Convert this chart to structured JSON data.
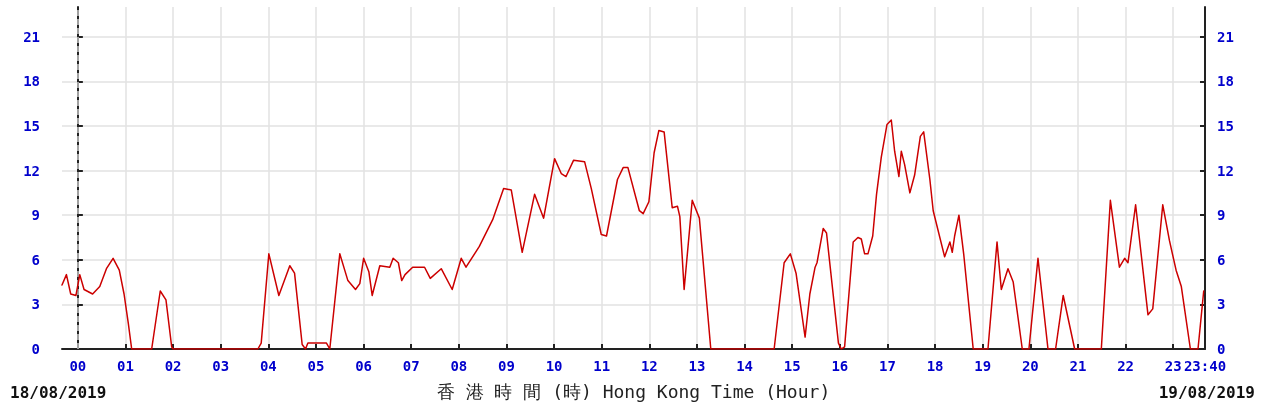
{
  "chart_data": {
    "type": "line",
    "xlabel": "香 港 時 間 (時) Hong Kong Time (Hour)",
    "annotations": [
      "18/08/2019",
      "19/08/2019"
    ],
    "xlim": [
      -0.333,
      23.667
    ],
    "xticks": [
      {
        "value": 0,
        "label": "00"
      },
      {
        "value": 1,
        "label": "01"
      },
      {
        "value": 2,
        "label": "02"
      },
      {
        "value": 3,
        "label": "03"
      },
      {
        "value": 4,
        "label": "04"
      },
      {
        "value": 5,
        "label": "05"
      },
      {
        "value": 6,
        "label": "06"
      },
      {
        "value": 7,
        "label": "07"
      },
      {
        "value": 8,
        "label": "08"
      },
      {
        "value": 9,
        "label": "09"
      },
      10,
      11,
      12,
      13,
      14,
      15,
      16,
      17,
      18,
      19,
      20,
      21,
      22,
      23,
      {
        "value": 23.667,
        "label": "23:40"
      }
    ],
    "ylim": [
      0,
      23
    ],
    "yticks": [
      0,
      3,
      6,
      9,
      12,
      15,
      18,
      21
    ],
    "y2lim": [
      0,
      23
    ],
    "y2ticks": [
      0,
      3,
      6,
      9,
      12,
      15,
      18,
      21
    ],
    "grid": true,
    "marker": "none",
    "line_style": "solid",
    "ref_lines": [
      {
        "axis": "x",
        "value": 0,
        "color": "#cccccc",
        "line_style": "dashed"
      }
    ],
    "series": [
      {
        "color": "#cc0000",
        "x": [
          -0.333,
          -0.24,
          -0.15,
          -0.04,
          0.04,
          0.13,
          0.31,
          0.46,
          0.6,
          0.74,
          0.87,
          0.97,
          1.06,
          1.13,
          1.55,
          1.73,
          1.85,
          1.97,
          2.0,
          3.78,
          3.85,
          4.01,
          4.22,
          4.45,
          4.55,
          4.71,
          4.78,
          4.83,
          5.22,
          5.29,
          5.5,
          5.67,
          5.83,
          5.92,
          6.0,
          6.11,
          6.18,
          6.34,
          6.55,
          6.62,
          6.73,
          6.8,
          6.87,
          7.03,
          7.28,
          7.4,
          7.63,
          7.86,
          8.05,
          8.15,
          8.43,
          8.71,
          8.94,
          9.1,
          9.33,
          9.59,
          9.78,
          10.01,
          10.15,
          10.25,
          10.41,
          10.64,
          10.78,
          10.99,
          11.1,
          11.33,
          11.45,
          11.55,
          11.79,
          11.87,
          11.99,
          12.1,
          12.2,
          12.31,
          12.48,
          12.59,
          12.64,
          12.73,
          12.9,
          13.05,
          13.29,
          14.62,
          14.83,
          14.96,
          15.08,
          15.27,
          15.37,
          15.48,
          15.52,
          15.65,
          15.72,
          15.97,
          16.03,
          16.1,
          16.28,
          16.38,
          16.45,
          16.52,
          16.59,
          16.69,
          16.77,
          16.87,
          16.99,
          17.08,
          17.15,
          17.24,
          17.29,
          17.36,
          17.47,
          17.57,
          17.69,
          17.76,
          17.89,
          17.96,
          18.2,
          18.31,
          18.36,
          18.41,
          18.5,
          18.6,
          18.8,
          19.11,
          19.3,
          19.39,
          19.53,
          19.64,
          19.83,
          19.97,
          20.16,
          20.37,
          20.53,
          20.69,
          20.93,
          21.49,
          21.68,
          21.87,
          21.98,
          22.05,
          22.21,
          22.47,
          22.57,
          22.78,
          22.92,
          23.06,
          23.17,
          23.36,
          23.52,
          23.64
        ],
        "values": [
          4.3,
          5.0,
          3.7,
          3.6,
          5.0,
          4.0,
          3.7,
          4.2,
          5.4,
          6.1,
          5.3,
          3.7,
          1.7,
          0,
          0,
          3.9,
          3.3,
          0.15,
          0,
          0,
          0.4,
          6.4,
          3.6,
          5.6,
          5.1,
          0.3,
          0,
          0.4,
          0.4,
          0,
          6.4,
          4.6,
          4.0,
          4.4,
          6.1,
          5.2,
          3.6,
          5.6,
          5.5,
          6.1,
          5.8,
          4.6,
          5.0,
          5.5,
          5.5,
          4.75,
          5.4,
          4.0,
          6.1,
          5.5,
          6.9,
          8.7,
          10.8,
          10.7,
          6.5,
          10.4,
          8.8,
          12.8,
          11.8,
          11.6,
          12.7,
          12.6,
          10.8,
          7.7,
          7.6,
          11.4,
          12.2,
          12.2,
          9.3,
          9.1,
          9.9,
          13.2,
          14.7,
          14.6,
          9.5,
          9.6,
          8.9,
          4.0,
          10.0,
          8.8,
          0,
          0,
          5.8,
          6.4,
          5.1,
          0.8,
          3.7,
          5.5,
          5.8,
          8.1,
          7.8,
          0.4,
          0,
          0.15,
          7.2,
          7.5,
          7.4,
          6.4,
          6.4,
          7.6,
          10.4,
          12.9,
          15.1,
          15.4,
          13.3,
          11.6,
          13.3,
          12.4,
          10.5,
          11.7,
          14.3,
          14.6,
          11.4,
          9.3,
          6.2,
          7.2,
          6.5,
          7.6,
          9.0,
          6.4,
          0,
          0,
          7.2,
          4.0,
          5.4,
          4.5,
          0,
          0,
          6.1,
          0,
          0,
          3.6,
          0,
          0,
          10.0,
          5.5,
          6.1,
          5.8,
          9.7,
          2.3,
          2.7,
          9.7,
          7.3,
          5.3,
          4.2,
          0,
          0,
          3.9
        ]
      }
    ]
  }
}
